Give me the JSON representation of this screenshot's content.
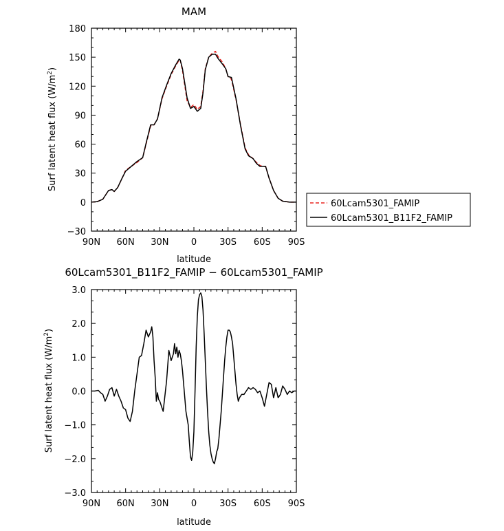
{
  "chart_data": [
    {
      "type": "line",
      "title": "MAM",
      "xlabel": "latitude",
      "ylabel": "Surf latent heat flux (W/m",
      "ylabel_sup": "2",
      "ylabel_close": ")",
      "xlim": [
        90,
        -90
      ],
      "ylim": [
        -30,
        180
      ],
      "x_ticks": [
        90,
        60,
        30,
        0,
        -30,
        -60,
        -90
      ],
      "x_ticklabels": [
        "90N",
        "60N",
        "30N",
        "0",
        "30S",
        "60S",
        "90S"
      ],
      "y_ticks": [
        -30,
        0,
        30,
        60,
        90,
        120,
        150,
        180
      ],
      "y_ticklabels": [
        "−30",
        "0",
        "30",
        "60",
        "90",
        "120",
        "150",
        "180"
      ],
      "legend": {
        "placement": "right"
      },
      "series": [
        {
          "name": "60Lcam5301_FAMIP",
          "color": "#e8231f",
          "dash": "dashed",
          "x": [
            90,
            85,
            80,
            75,
            72,
            70,
            67,
            63,
            60,
            55,
            50,
            45,
            42,
            38,
            35,
            32,
            28,
            24,
            20,
            16,
            13,
            12,
            10,
            6,
            3,
            0,
            -3,
            -6,
            -8,
            -10,
            -13,
            -16,
            -19,
            -21,
            -25,
            -28,
            -30,
            -33,
            -37,
            -41,
            -45,
            -48,
            -52,
            -55,
            -58,
            -60,
            -63,
            -66,
            -70,
            -74,
            -78,
            -81,
            -84,
            -87,
            -90
          ],
          "y": [
            0,
            0.5,
            3,
            12,
            13,
            11,
            15,
            25,
            33,
            37,
            41,
            46,
            60,
            79,
            80,
            86,
            107,
            120,
            132,
            141,
            147,
            147,
            136,
            105,
            98,
            101,
            96,
            99,
            115,
            138,
            150,
            154,
            156,
            151,
            145,
            138,
            130,
            127,
            106,
            80,
            56,
            49,
            45,
            41,
            38,
            37,
            37,
            25,
            12,
            4,
            1,
            0.5,
            0,
            0,
            0
          ]
        },
        {
          "name": "60Lcam5301_B11F2_FAMIP",
          "color": "#000000",
          "dash": "solid",
          "x": [
            90,
            85,
            80,
            75,
            72,
            70,
            67,
            63,
            60,
            55,
            50,
            45,
            42,
            38,
            35,
            32,
            28,
            24,
            20,
            16,
            13,
            12,
            10,
            6,
            3,
            0,
            -3,
            -6,
            -8,
            -10,
            -13,
            -16,
            -19,
            -21,
            -25,
            -28,
            -30,
            -33,
            -37,
            -41,
            -45,
            -48,
            -52,
            -55,
            -58,
            -60,
            -63,
            -66,
            -70,
            -74,
            -78,
            -81,
            -84,
            -87,
            -90
          ],
          "y": [
            0,
            0.5,
            3,
            12,
            13,
            11,
            15,
            25,
            32,
            37,
            42,
            46,
            61,
            80,
            80,
            86,
            108,
            121,
            133,
            142,
            148,
            147,
            138,
            108,
            97,
            99,
            94,
            97,
            113,
            137,
            150,
            153,
            153,
            149,
            143,
            138,
            130,
            129,
            107,
            79,
            55,
            48,
            45,
            40,
            37,
            37,
            37,
            25,
            12,
            4,
            1,
            0.5,
            0,
            0,
            0
          ]
        }
      ]
    },
    {
      "type": "line",
      "title": "60Lcam5301_B11F2_FAMIP − 60Lcam5301_FAMIP",
      "xlabel": "latitude",
      "ylabel": "Surf latent heat flux (W/m",
      "ylabel_sup": "2",
      "ylabel_close": ")",
      "xlim": [
        90,
        -90
      ],
      "ylim": [
        -3.0,
        3.0
      ],
      "x_ticks": [
        90,
        60,
        30,
        0,
        -30,
        -60,
        -90
      ],
      "x_ticklabels": [
        "90N",
        "60N",
        "30N",
        "0",
        "30S",
        "60S",
        "90S"
      ],
      "y_ticks": [
        -3,
        -2,
        -1,
        0,
        1,
        2,
        3
      ],
      "y_ticklabels": [
        "−3.0",
        "−2.0",
        "−1.0",
        "0.0",
        "1.0",
        "2.0",
        "3.0"
      ],
      "series": [
        {
          "color": "#000000",
          "dash": "solid",
          "x": [
            90,
            87,
            84,
            82,
            80,
            78,
            76,
            74,
            72,
            70,
            68,
            66,
            64,
            62,
            60,
            58,
            56,
            54,
            52,
            50,
            48,
            46,
            44,
            42,
            40,
            38,
            37,
            36,
            35,
            34,
            33,
            32,
            31,
            30,
            29,
            28,
            27,
            26,
            24,
            22,
            20,
            18,
            17,
            16,
            15,
            14,
            13,
            12,
            11,
            10,
            9,
            8,
            7,
            6,
            5,
            4,
            3,
            2,
            1,
            0,
            -1,
            -2,
            -3,
            -4,
            -5,
            -6,
            -7,
            -8,
            -9,
            -10,
            -11,
            -12,
            -13,
            -14,
            -15,
            -16,
            -17,
            -18,
            -19,
            -20,
            -21,
            -22,
            -23,
            -24,
            -25,
            -26,
            -27,
            -28,
            -29,
            -30,
            -31,
            -32,
            -33,
            -34,
            -35,
            -36,
            -37,
            -38,
            -39,
            -40,
            -42,
            -44,
            -46,
            -48,
            -50,
            -52,
            -54,
            -56,
            -58,
            -60,
            -62,
            -64,
            -66,
            -68,
            -70,
            -72,
            -74,
            -76,
            -78,
            -80,
            -82,
            -84,
            -86,
            -88,
            -90
          ],
          "y": [
            0,
            0,
            0.02,
            -0.05,
            -0.1,
            -0.3,
            -0.15,
            0.05,
            0.1,
            -0.15,
            0.05,
            -0.15,
            -0.3,
            -0.5,
            -0.55,
            -0.8,
            -0.9,
            -0.6,
            0,
            0.5,
            1.0,
            1.05,
            1.4,
            1.8,
            1.6,
            1.75,
            1.9,
            1.6,
            0.9,
            0.4,
            -0.3,
            -0.05,
            -0.25,
            -0.3,
            -0.4,
            -0.5,
            -0.6,
            -0.3,
            0.3,
            1.2,
            0.9,
            1.1,
            1.4,
            1.1,
            1.3,
            1.0,
            1.2,
            1.1,
            0.9,
            0.6,
            0.2,
            -0.2,
            -0.6,
            -0.8,
            -1.0,
            -1.5,
            -1.95,
            -2.05,
            -1.8,
            -1.2,
            0,
            1.3,
            2.2,
            2.7,
            2.85,
            2.9,
            2.8,
            2.4,
            1.7,
            0.9,
            0.1,
            -0.6,
            -1.2,
            -1.6,
            -1.85,
            -2.0,
            -2.1,
            -2.15,
            -2.0,
            -1.8,
            -1.7,
            -1.4,
            -1.0,
            -0.6,
            -0.1,
            0.4,
            0.9,
            1.3,
            1.6,
            1.8,
            1.8,
            1.75,
            1.6,
            1.4,
            1.0,
            0.6,
            0.2,
            -0.1,
            -0.3,
            -0.2,
            -0.1,
            -0.1,
            0,
            0.1,
            0.05,
            0.1,
            0.05,
            -0.05,
            0,
            -0.2,
            -0.45,
            -0.1,
            0.25,
            0.2,
            -0.2,
            0.1,
            -0.2,
            -0.1,
            0.15,
            0.05,
            -0.1,
            0,
            -0.05,
            0,
            0
          ]
        }
      ]
    }
  ]
}
